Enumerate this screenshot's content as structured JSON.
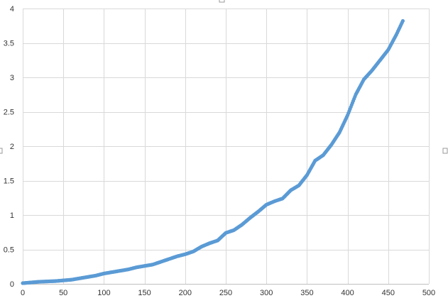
{
  "chart_data": {
    "type": "scatter",
    "title": "",
    "xlabel": "",
    "ylabel": "",
    "xlim": [
      0,
      500
    ],
    "ylim": [
      0,
      4
    ],
    "x_ticks": [
      "0",
      "50",
      "100",
      "150",
      "200",
      "250",
      "300",
      "350",
      "400",
      "450",
      "500"
    ],
    "y_ticks": [
      "0",
      "0.5",
      "1",
      "1.5",
      "2",
      "2.5",
      "3",
      "3.5",
      "4"
    ],
    "grid": true,
    "legend": "none",
    "marker_color": "#5b9bd5",
    "series": [
      {
        "points": [
          [
            0,
            0.01
          ],
          [
            10,
            0.02
          ],
          [
            20,
            0.03
          ],
          [
            30,
            0.035
          ],
          [
            40,
            0.04
          ],
          [
            50,
            0.05
          ],
          [
            60,
            0.06
          ],
          [
            70,
            0.08
          ],
          [
            80,
            0.1
          ],
          [
            90,
            0.12
          ],
          [
            100,
            0.15
          ],
          [
            110,
            0.17
          ],
          [
            120,
            0.19
          ],
          [
            130,
            0.21
          ],
          [
            140,
            0.24
          ],
          [
            150,
            0.26
          ],
          [
            160,
            0.28
          ],
          [
            170,
            0.32
          ],
          [
            180,
            0.36
          ],
          [
            190,
            0.4
          ],
          [
            200,
            0.43
          ],
          [
            210,
            0.47
          ],
          [
            220,
            0.54
          ],
          [
            230,
            0.59
          ],
          [
            240,
            0.63
          ],
          [
            250,
            0.74
          ],
          [
            260,
            0.78
          ],
          [
            270,
            0.86
          ],
          [
            280,
            0.96
          ],
          [
            290,
            1.05
          ],
          [
            300,
            1.15
          ],
          [
            310,
            1.2
          ],
          [
            320,
            1.24
          ],
          [
            330,
            1.36
          ],
          [
            340,
            1.43
          ],
          [
            350,
            1.58
          ],
          [
            360,
            1.79
          ],
          [
            370,
            1.87
          ],
          [
            380,
            2.02
          ],
          [
            390,
            2.2
          ],
          [
            400,
            2.45
          ],
          [
            410,
            2.75
          ],
          [
            420,
            2.97
          ],
          [
            430,
            3.1
          ],
          [
            440,
            3.25
          ],
          [
            450,
            3.4
          ],
          [
            460,
            3.62
          ],
          [
            468,
            3.82
          ]
        ]
      }
    ]
  }
}
